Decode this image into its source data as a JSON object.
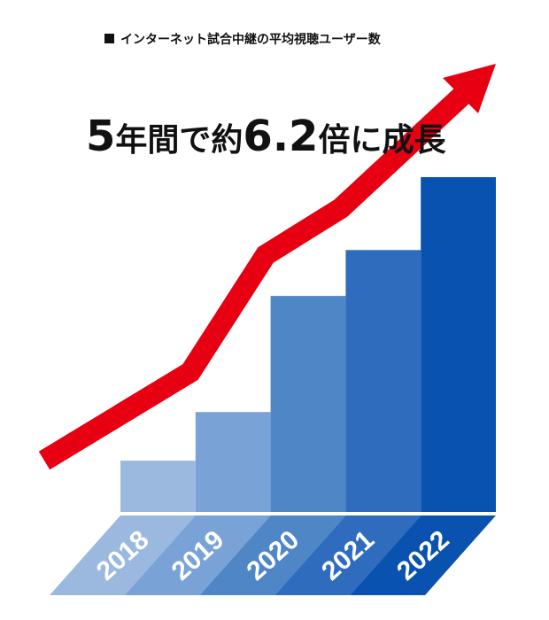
{
  "chart_data": {
    "type": "bar",
    "subtitle": "インターネット試合中継の平均視聴ユーザー数",
    "title_parts": [
      "5",
      "年間で約",
      "6.2",
      "倍に成長"
    ],
    "categories": [
      "2018",
      "2019",
      "2020",
      "2021",
      "2022"
    ],
    "values": [
      0.95,
      1.85,
      4.0,
      4.85,
      6.2
    ],
    "colors": [
      "#9bb8df",
      "#79a3d6",
      "#4f86c6",
      "#2f6cbd",
      "#0a52b0"
    ]
  }
}
